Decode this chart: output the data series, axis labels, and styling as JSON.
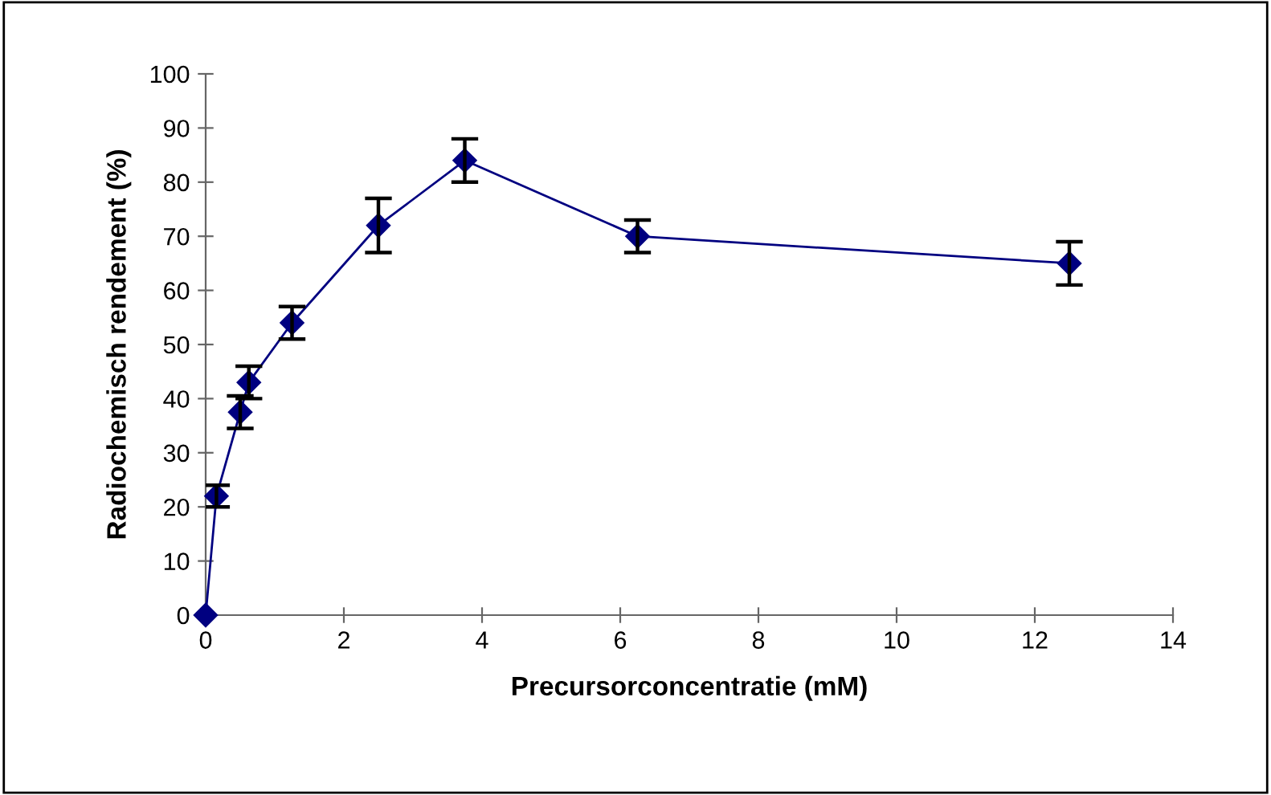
{
  "chart_data": {
    "type": "line",
    "xlabel": "Precursorconcentratie (mM)",
    "ylabel": "Radiochemisch rendement (%)",
    "x": [
      0,
      0.156,
      0.5,
      0.625,
      1.25,
      2.5,
      3.75,
      6.25,
      12.5
    ],
    "series": [
      {
        "color": "#000080",
        "values": [
          0,
          22,
          37.5,
          43,
          54,
          72,
          84,
          70,
          65
        ],
        "errors": [
          null,
          2,
          3,
          3,
          3,
          5,
          4,
          3,
          4
        ]
      }
    ],
    "xlim": [
      0,
      14
    ],
    "xticks": [
      0,
      2,
      4,
      6,
      8,
      10,
      12,
      14
    ],
    "ylim": [
      0,
      100
    ],
    "yticks": [
      0,
      10,
      20,
      30,
      40,
      50,
      60,
      70,
      80,
      90,
      100
    ],
    "marker": "diamond",
    "line_style": "solid",
    "grid": false,
    "legend": false
  }
}
